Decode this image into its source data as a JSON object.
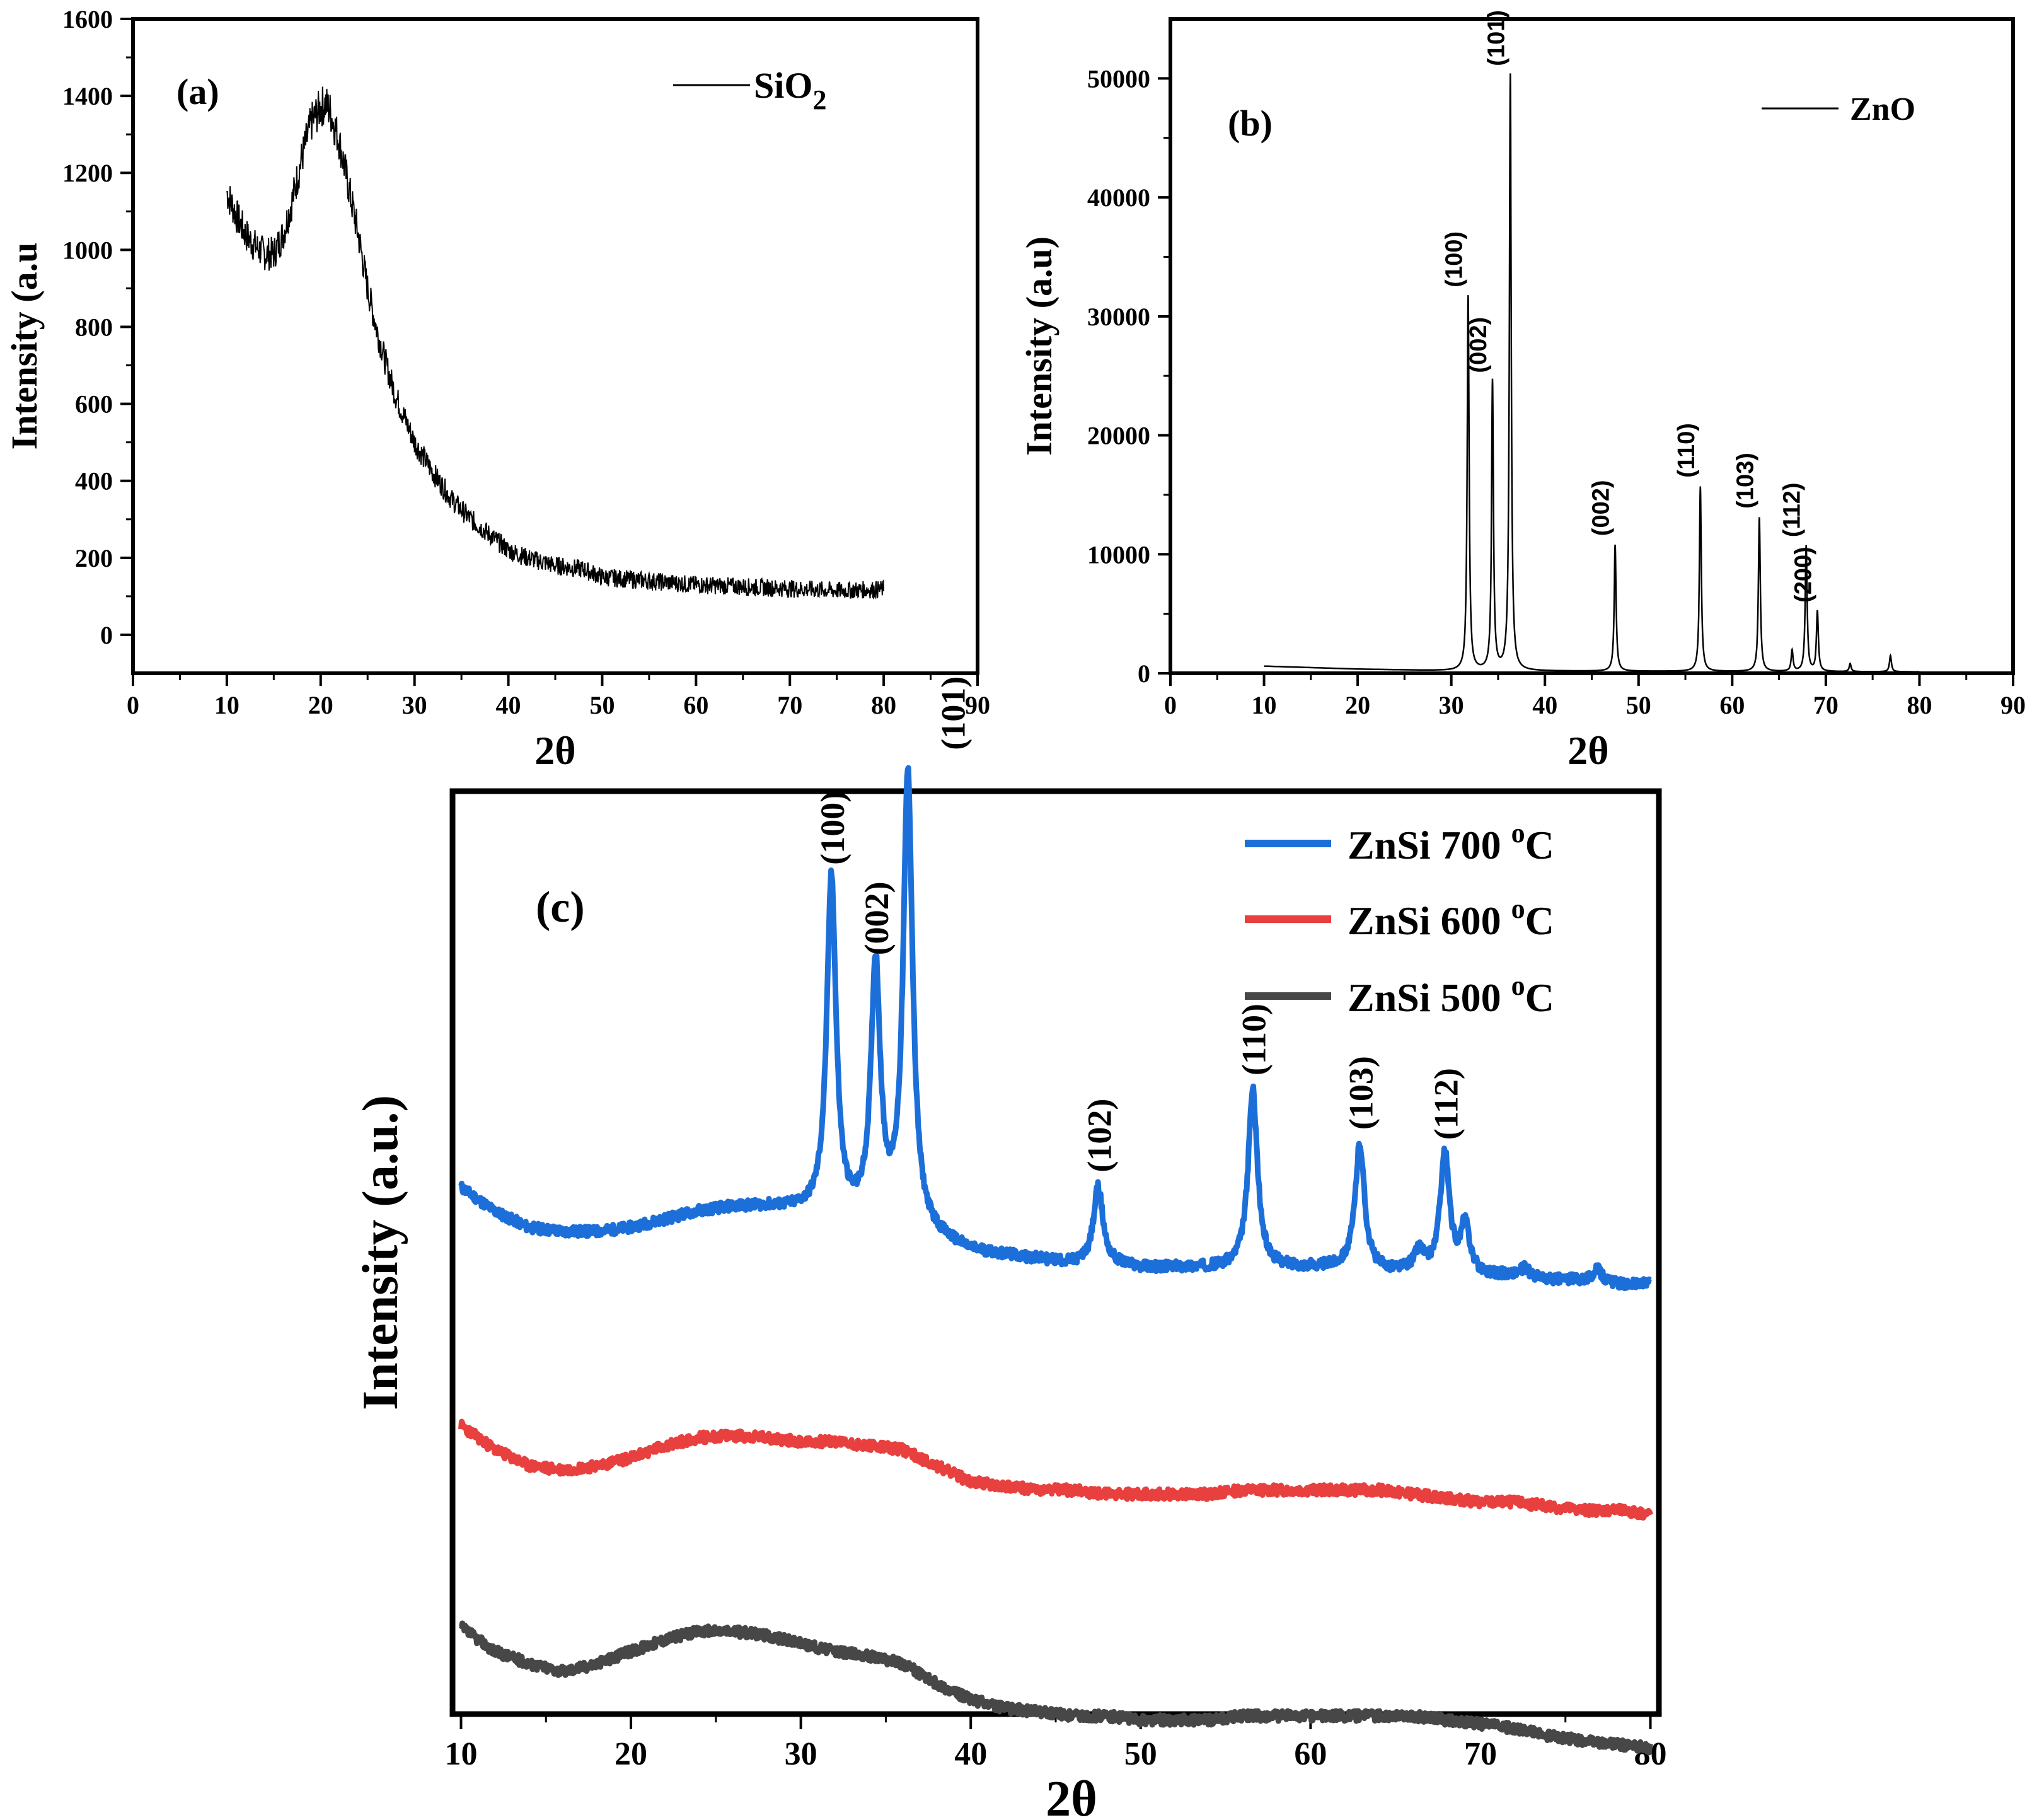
{
  "chart_data": [
    {
      "id": "a",
      "type": "line",
      "panel_label": "(a)",
      "xlabel": "2θ",
      "ylabel": "Intensity (a.u",
      "xlim": [
        0,
        90
      ],
      "ylim": [
        -100,
        1600
      ],
      "xticks": [
        0,
        10,
        20,
        30,
        40,
        50,
        60,
        70,
        80,
        90
      ],
      "yticks": [
        0,
        200,
        400,
        600,
        800,
        1000,
        1200,
        1400,
        1600
      ],
      "series": [
        {
          "name": "SiO2",
          "color": "#000000",
          "x": [
            10,
            11,
            12,
            13,
            14,
            15,
            16,
            17,
            18,
            19,
            20,
            20.5,
            21,
            22,
            23,
            24,
            25,
            26,
            27,
            28,
            29,
            30,
            32,
            34,
            36,
            38,
            40,
            42,
            45,
            48,
            50,
            55,
            60,
            65,
            70,
            75,
            80
          ],
          "y": [
            1150,
            1090,
            1040,
            1010,
            990,
            990,
            1040,
            1130,
            1240,
            1330,
            1370,
            1380,
            1360,
            1280,
            1160,
            1040,
            900,
            790,
            700,
            620,
            560,
            500,
            420,
            350,
            300,
            260,
            220,
            200,
            180,
            170,
            150,
            140,
            130,
            125,
            120,
            115,
            118
          ]
        }
      ],
      "legend": {
        "position": "top-right",
        "entries": [
          {
            "name": "SiO",
            "sub": "2"
          }
        ]
      },
      "grid": false
    },
    {
      "id": "b",
      "type": "line",
      "panel_label": "(b)",
      "xlabel": "2θ",
      "ylabel": "Intensity (a.u)",
      "xlim": [
        0,
        90
      ],
      "ylim": [
        0,
        55000
      ],
      "xticks": [
        0,
        10,
        20,
        30,
        40,
        50,
        60,
        70,
        80,
        90
      ],
      "yticks": [
        0,
        10000,
        20000,
        30000,
        40000,
        50000
      ],
      "series": [
        {
          "name": "ZnO",
          "color": "#000000",
          "baseline": {
            "x": [
              10,
              20,
              30,
              80
            ],
            "y": [
              600,
              350,
              200,
              120
            ]
          },
          "peaks": [
            {
              "x": 31.8,
              "y": 31700,
              "label": "(100)"
            },
            {
              "x": 34.4,
              "y": 24500,
              "label": "(002)"
            },
            {
              "x": 36.3,
              "y": 50300,
              "label": "(101)"
            },
            {
              "x": 47.5,
              "y": 10800,
              "label": "(002)"
            },
            {
              "x": 56.6,
              "y": 15700,
              "label": "(110)"
            },
            {
              "x": 62.9,
              "y": 13100,
              "label": "(103)"
            },
            {
              "x": 66.4,
              "y": 1900,
              "label": ""
            },
            {
              "x": 67.9,
              "y": 10700,
              "label": "(112)"
            },
            {
              "x": 69.1,
              "y": 5200,
              "label": "(200)"
            },
            {
              "x": 72.6,
              "y": 800,
              "label": ""
            },
            {
              "x": 76.9,
              "y": 1500,
              "label": ""
            }
          ]
        }
      ],
      "legend": {
        "position": "top-right",
        "entries": [
          {
            "name": "ZnO"
          }
        ]
      },
      "grid": false
    },
    {
      "id": "c",
      "type": "line",
      "panel_label": "(c)",
      "xlabel": "2θ",
      "ylabel": "Intensity (a.u.)",
      "xlim": [
        9.5,
        80.5
      ],
      "xticks": [
        10,
        20,
        30,
        40,
        50,
        60,
        70,
        80
      ],
      "y_ticks_shown": false,
      "series": [
        {
          "name": "ZnSi 700 oC",
          "legend_text": "ZnSi  700",
          "color": "#1c6fd9",
          "x": [
            10,
            12,
            14,
            16,
            18,
            20,
            22,
            24,
            26,
            28,
            30,
            32,
            34,
            36,
            38,
            40,
            42,
            44,
            46,
            48,
            50,
            52,
            54,
            56,
            58,
            60,
            62,
            64,
            66,
            68,
            70,
            72,
            74,
            76,
            78,
            80
          ],
          "y": [
            0.26,
            0.2,
            0.16,
            0.15,
            0.15,
            0.16,
            0.18,
            0.2,
            0.21,
            0.21,
            0.2,
            0.18,
            0.17,
            0.16,
            0.13,
            0.1,
            0.09,
            0.08,
            0.07,
            0.07,
            0.06,
            0.06,
            0.06,
            0.06,
            0.06,
            0.06,
            0.06,
            0.05,
            0.05,
            0.04,
            0.04,
            0.04,
            0.03,
            0.03,
            0.02,
            0.02
          ],
          "peaks": [
            {
              "x": 31.8,
              "height": 0.84,
              "label": "(100)"
            },
            {
              "x": 34.4,
              "height": 0.63,
              "label": "(002)"
            },
            {
              "x": 36.3,
              "height": 1.12,
              "label": "(101)"
            },
            {
              "x": 47.5,
              "height": 0.19,
              "label": "(102)"
            },
            {
              "x": 56.6,
              "height": 0.44,
              "label": "(110)"
            },
            {
              "x": 62.9,
              "height": 0.31,
              "label": "(103)"
            },
            {
              "x": 66.4,
              "height": 0.05,
              "label": ""
            },
            {
              "x": 67.9,
              "height": 0.3,
              "label": "(112)"
            },
            {
              "x": 69.1,
              "height": 0.12,
              "label": ""
            },
            {
              "x": 72.6,
              "height": 0.02,
              "label": ""
            },
            {
              "x": 76.9,
              "height": 0.03,
              "label": ""
            }
          ]
        },
        {
          "name": "ZnSi 600 oC",
          "legend_text": "ZnSi  600",
          "color": "#e8403e",
          "x": [
            10,
            12,
            14,
            16,
            18,
            20,
            22,
            24,
            26,
            28,
            30,
            32,
            34,
            36,
            38,
            40,
            42,
            44,
            46,
            48,
            50,
            52,
            54,
            56,
            58,
            60,
            62,
            64,
            66,
            68,
            70,
            72,
            74,
            76,
            78,
            80
          ],
          "y": [
            -0.33,
            -0.39,
            -0.43,
            -0.44,
            -0.43,
            -0.41,
            -0.38,
            -0.36,
            -0.355,
            -0.36,
            -0.37,
            -0.37,
            -0.38,
            -0.39,
            -0.43,
            -0.47,
            -0.48,
            -0.49,
            -0.49,
            -0.5,
            -0.5,
            -0.5,
            -0.5,
            -0.49,
            -0.49,
            -0.49,
            -0.49,
            -0.49,
            -0.5,
            -0.51,
            -0.52,
            -0.52,
            -0.53,
            -0.54,
            -0.54,
            -0.55
          ]
        },
        {
          "name": "ZnSi 500 oC",
          "legend_text": "ZnSi  500",
          "color": "#474747",
          "x": [
            10,
            12,
            14,
            16,
            18,
            20,
            22,
            24,
            26,
            28,
            30,
            32,
            34,
            36,
            38,
            40,
            42,
            44,
            46,
            48,
            50,
            52,
            54,
            56,
            58,
            60,
            62,
            64,
            66,
            68,
            70,
            72,
            74,
            76,
            78,
            80
          ],
          "y": [
            -0.83,
            -0.89,
            -0.92,
            -0.94,
            -0.92,
            -0.89,
            -0.86,
            -0.84,
            -0.84,
            -0.85,
            -0.87,
            -0.89,
            -0.9,
            -0.92,
            -0.97,
            -1.01,
            -1.03,
            -1.04,
            -1.05,
            -1.05,
            -1.06,
            -1.06,
            -1.06,
            -1.05,
            -1.05,
            -1.05,
            -1.05,
            -1.05,
            -1.05,
            -1.06,
            -1.07,
            -1.08,
            -1.1,
            -1.11,
            -1.12,
            -1.13
          ]
        }
      ],
      "legend": {
        "position": "top-right",
        "superscript": "o",
        "unit": "C"
      },
      "grid": false
    }
  ]
}
